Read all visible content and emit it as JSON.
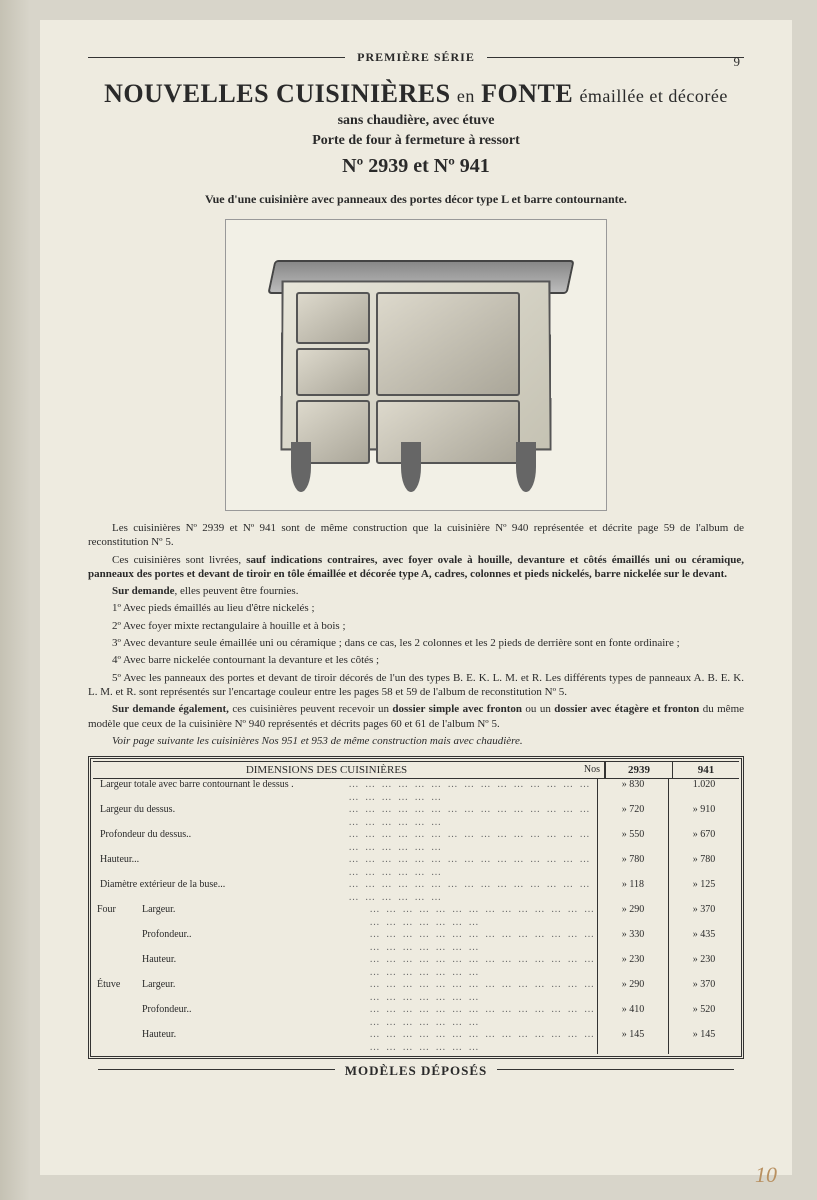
{
  "series_title": "PREMIÈRE SÉRIE",
  "page_number": "9",
  "main_title": {
    "lead": "NOUVELLES CUISINIÈRES",
    "mid": "en",
    "second": "FONTE",
    "tail": "émaillée et décorée"
  },
  "subtitle_line1": "sans chaudière, avec étuve",
  "subtitle_line2": "Porte de four à fermeture à ressort",
  "model_line": "Nº 2939 et Nº 941",
  "caption": "Vue d'une cuisinière avec panneaux des portes décor type L et barre contournante.",
  "paragraphs": {
    "p1": "Les cuisinières Nº 2939 et Nº 941 sont de même construction que la cuisinière Nº 940 représentée et décrite page 59 de l'album de reconstitution Nº 5.",
    "p2_a": "Ces cuisinières sont livrées, ",
    "p2_b": "sauf indications contraires, avec foyer ovale à houille, devanture et côtés émaillés uni ou céramique, panneaux des portes et devant de tiroir en tôle émaillée et décorée type A, cadres, colonnes et pieds nickelés, barre nickelée sur le devant.",
    "p3_a": "Sur demande",
    "p3_b": ", elles peuvent être fournies.",
    "opt1": "1º Avec pieds émaillés au lieu d'être nickelés ;",
    "opt2": "2º Avec foyer mixte rectangulaire à houille et à bois ;",
    "opt3": "3º Avec devanture seule émaillée uni ou céramique ; dans ce cas, les 2 colonnes et les 2 pieds de derrière sont en fonte ordinaire ;",
    "opt4": "4º Avec barre nickelée contournant la devanture et les côtés ;",
    "opt5": "5º Avec les panneaux des portes et devant de tiroir décorés de l'un des types B. E. K. L. M. et R. Les différents types de panneaux A. B. E. K. L. M. et R. sont représentés sur l'encartage couleur entre les pages 58 et 59 de l'album de reconstitution Nº 5.",
    "p4_a": "Sur demande également, ",
    "p4_b": "ces cuisinières peuvent recevoir un ",
    "p4_c": "dossier simple avec fronton",
    "p4_d": " ou un ",
    "p4_e": "dossier avec étagère et fronton",
    "p4_f": " du même modèle que ceux de la cuisinière Nº 940 représentés et décrits pages 60 et 61 de l'album Nº 5.",
    "p5": "Voir page suivante les cuisinières Nos 951 et 953 de même construction mais avec chaudière."
  },
  "table": {
    "title": "DIMENSIONS DES CUISINIÈRES",
    "nos_label": "Nos",
    "col1": "2939",
    "col2": "941",
    "groups": {
      "four": "Four",
      "etuve": "Étuve"
    },
    "rows": [
      {
        "label": "Largeur totale avec barre contournant le dessus .",
        "v1": "» 830",
        "v2": "1.020"
      },
      {
        "label": "Largeur du dessus.",
        "v1": "» 720",
        "v2": "» 910"
      },
      {
        "label": "Profondeur du dessus..",
        "v1": "» 550",
        "v2": "» 670"
      },
      {
        "label": "Hauteur...",
        "v1": "» 780",
        "v2": "» 780"
      },
      {
        "label": "Diamètre extérieur de la buse...",
        "v1": "» 118",
        "v2": "» 125"
      },
      {
        "group": "four",
        "label": "Largeur.",
        "v1": "» 290",
        "v2": "» 370"
      },
      {
        "group": "four",
        "label": "Profondeur..",
        "v1": "» 330",
        "v2": "» 435"
      },
      {
        "group": "four",
        "label": "Hauteur.",
        "v1": "» 230",
        "v2": "» 230"
      },
      {
        "group": "etuve",
        "label": "Largeur.",
        "v1": "» 290",
        "v2": "» 370"
      },
      {
        "group": "etuve",
        "label": "Profondeur..",
        "v1": "» 410",
        "v2": "» 520"
      },
      {
        "group": "etuve",
        "label": "Hauteur.",
        "v1": "» 145",
        "v2": "» 145"
      }
    ]
  },
  "footer": "MODÈLES DÉPOSÉS",
  "hand_number": "10",
  "colors": {
    "page_bg": "#eeebe0",
    "outer_bg": "#d8d5ca",
    "text": "#2a2a2a",
    "rule": "#333333"
  },
  "typography": {
    "body_fontsize_pt": 8,
    "title_fontsize_pt": 20,
    "font_family": "serif"
  }
}
